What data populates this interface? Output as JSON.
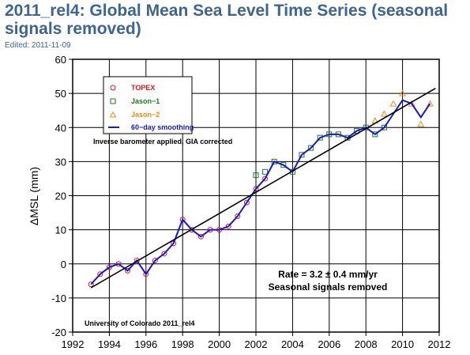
{
  "page": {
    "title": "2011_rel4: Global Mean Sea Level Time Series (seasonal signals removed)",
    "edited": "Edited: 2011-11-09"
  },
  "colors": {
    "title": "#3d6494",
    "topex": "#e8161b",
    "jason1": "#1c7d1c",
    "jason2": "#f08c14",
    "smoothing": "#1414e6",
    "trend": "#000000"
  },
  "chart_data": {
    "type": "scatter",
    "title": "",
    "xlabel": "",
    "ylabel": "ΔMSL (mm)",
    "xlim": [
      1992,
      2012
    ],
    "ylim": [
      -20,
      60
    ],
    "xticks": [
      1992,
      1994,
      1996,
      1998,
      2000,
      2002,
      2004,
      2006,
      2008,
      2010,
      2012
    ],
    "yticks": [
      -20,
      -10,
      0,
      10,
      20,
      30,
      40,
      50,
      60
    ],
    "grid": true,
    "legend_position": "top-left",
    "series": [
      {
        "name": "TOPEX",
        "marker": "circle",
        "color": "#e8161b",
        "x": [
          1993.0,
          1993.5,
          1994.0,
          1994.5,
          1995.0,
          1995.5,
          1996.0,
          1996.5,
          1997.0,
          1997.5,
          1998.0,
          1998.5,
          1999.0,
          1999.5,
          2000.0,
          2000.5,
          2001.0,
          2001.5,
          2002.0,
          2002.5
        ],
        "y": [
          -6,
          -3,
          -1,
          0,
          -2,
          1,
          -3,
          1,
          3,
          6,
          13,
          10,
          8,
          10,
          10,
          11,
          14,
          18,
          22,
          25
        ]
      },
      {
        "name": "Jason−1",
        "marker": "square",
        "color": "#1c7d1c",
        "x": [
          2002.0,
          2002.5,
          2003.0,
          2003.5,
          2004.0,
          2004.5,
          2005.0,
          2005.5,
          2006.0,
          2006.5,
          2007.0,
          2007.5,
          2008.0,
          2008.5,
          2009.0
        ],
        "y": [
          26,
          27,
          30,
          29,
          27,
          32,
          34,
          37,
          38,
          38,
          37,
          39,
          40,
          38,
          40
        ]
      },
      {
        "name": "Jason−2",
        "marker": "triangle",
        "color": "#f08c14",
        "x": [
          2008.5,
          2009.0,
          2009.5,
          2010.0,
          2010.5,
          2011.0,
          2011.5
        ],
        "y": [
          42,
          44,
          47,
          50,
          47,
          41,
          47
        ]
      },
      {
        "name": "60−day smoothing",
        "marker": "line",
        "color": "#1414e6",
        "x": [
          1993.0,
          1993.5,
          1994.0,
          1994.5,
          1995.0,
          1995.5,
          1996.0,
          1996.5,
          1997.0,
          1997.5,
          1998.0,
          1998.5,
          1999.0,
          1999.5,
          2000.0,
          2000.5,
          2001.0,
          2001.5,
          2002.0,
          2002.5,
          2003.0,
          2003.5,
          2004.0,
          2004.5,
          2005.0,
          2005.5,
          2006.0,
          2006.5,
          2007.0,
          2007.5,
          2008.0,
          2008.5,
          2009.0,
          2009.5,
          2010.0,
          2010.5,
          2011.0,
          2011.5
        ],
        "y": [
          -6,
          -3,
          -1,
          0,
          -2,
          1,
          -3,
          1,
          3,
          6,
          13,
          10,
          8,
          10,
          10,
          11,
          14,
          18,
          22,
          25,
          30,
          29,
          27,
          32,
          34,
          37,
          38,
          38,
          37,
          39,
          40,
          38,
          40,
          44,
          48,
          47,
          43,
          47
        ]
      }
    ],
    "trend_line": {
      "x": [
        1993.0,
        2011.8
      ],
      "y": [
        -7,
        51.5
      ]
    },
    "annotations": {
      "corrections": "Inverse barometer applied, GIA corrected",
      "rate": "Rate = 3.2 ± 0.4 mm/yr",
      "seasonal": "Seasonal signals removed",
      "credit": "University of Colorado 2011_rel4"
    }
  }
}
